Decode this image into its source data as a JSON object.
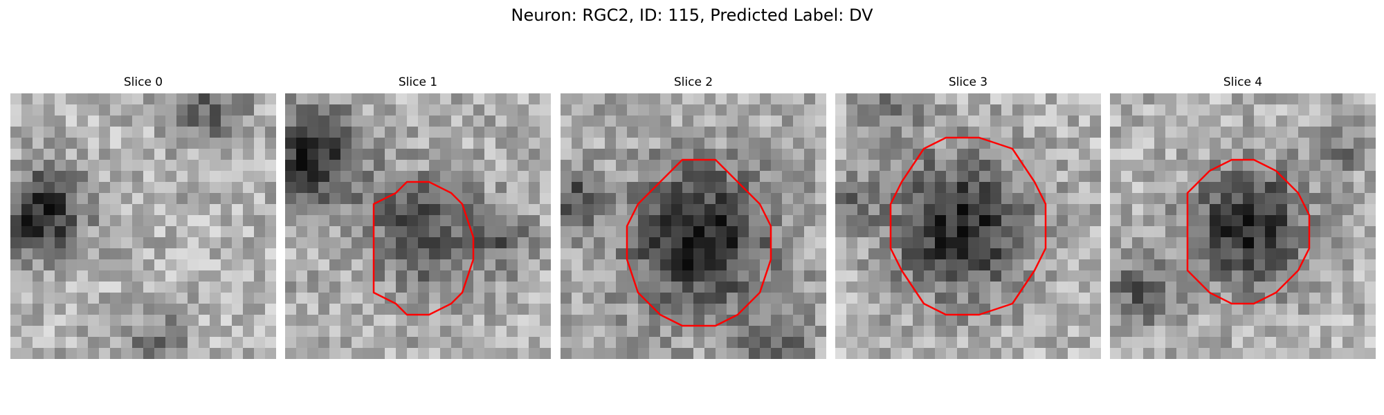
{
  "figure": {
    "title": "Neuron: RGC2, ID: 115, Predicted Label: DV"
  },
  "colors": {
    "contour": "#ff0000",
    "background": "#ffffff"
  },
  "panels": [
    {
      "title": "Slice 0",
      "has_contour": false
    },
    {
      "title": "Slice 1",
      "has_contour": true
    },
    {
      "title": "Slice 2",
      "has_contour": true
    },
    {
      "title": "Slice 3",
      "has_contour": true
    },
    {
      "title": "Slice 4",
      "has_contour": true
    }
  ]
}
